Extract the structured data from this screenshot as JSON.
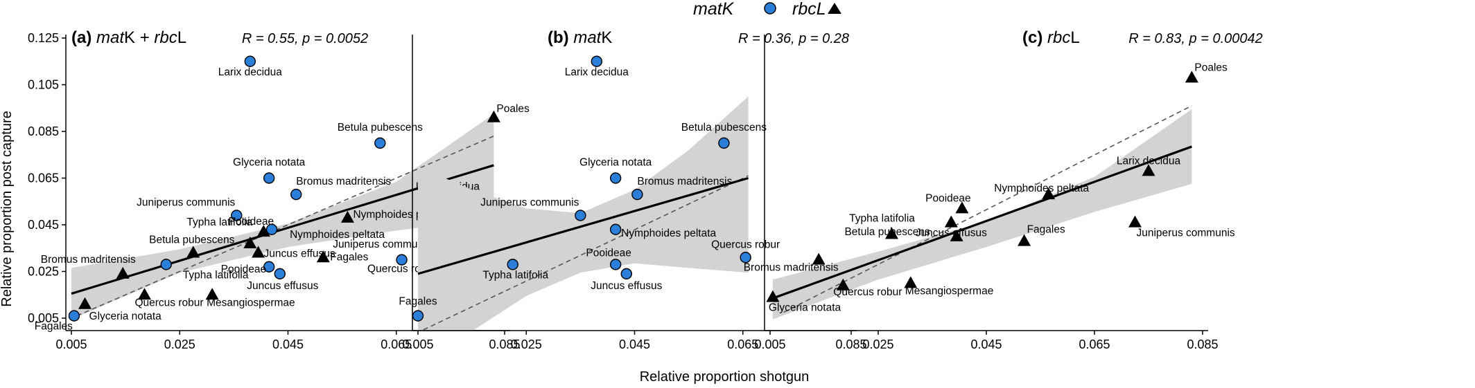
{
  "legend": {
    "placement": "top-center",
    "items": [
      {
        "label": "matK",
        "marker": "circle",
        "color": "#2b7fd9"
      },
      {
        "label": "rbcL",
        "marker": "triangle",
        "color": "#000000"
      }
    ]
  },
  "axes": {
    "ylabel": "Relative proportion post capture",
    "xlabel": "Relative proportion shotgun"
  },
  "colors": {
    "matK": "#2b7fd9",
    "rbcL": "#000000",
    "ribbon": "#d3d3d3",
    "fit": "#000000",
    "identity": "#555555"
  },
  "chart_data": [
    {
      "type": "scatter",
      "panel": "(a)",
      "title_prefix": "(a)",
      "title_parts": [
        {
          "text": "mat",
          "style": "italic"
        },
        {
          "text": "K + ",
          "style": "normal"
        },
        {
          "text": "rbc",
          "style": "italic"
        },
        {
          "text": "L",
          "style": "normal"
        }
      ],
      "stat_label": "R = 0.55,  p = 0.0052",
      "xlim": [
        0.005,
        0.085
      ],
      "ylim": [
        0.005,
        0.125
      ],
      "xticks": [
        "0.005",
        "0.025",
        "0.045",
        "0.065",
        "0.085"
      ],
      "yticks": [
        "0.005",
        "0.025",
        "0.045",
        "0.065",
        "0.085",
        "0.105",
        "0.125"
      ],
      "grid": false,
      "fit": {
        "x": [
          0.005,
          0.083
        ],
        "y": [
          0.0155,
          0.0705
        ]
      },
      "ribbon": {
        "x": [
          0.005,
          0.025,
          0.045,
          0.065,
          0.083
        ],
        "lower": [
          0.0045,
          0.0245,
          0.0355,
          0.0425,
          0.048
        ],
        "upper": [
          0.0265,
          0.0345,
          0.0455,
          0.0635,
          0.0925
        ]
      },
      "identity": {
        "x": [
          0.006,
          0.083
        ],
        "y": [
          0.006,
          0.083
        ]
      },
      "series": [
        {
          "name": "matK",
          "marker": "circle",
          "points": [
            {
              "label": "Larix decidua",
              "x": 0.038,
              "y": 0.115
            },
            {
              "label": "Betula pubescens",
              "x": 0.062,
              "y": 0.08
            },
            {
              "label": "Glyceria notata",
              "x": 0.0415,
              "y": 0.065
            },
            {
              "label": "Bromus madritensis",
              "x": 0.0465,
              "y": 0.058
            },
            {
              "label": "Juniperus communis",
              "x": 0.0355,
              "y": 0.049
            },
            {
              "label": "Nymphoides peltata",
              "x": 0.042,
              "y": 0.043
            },
            {
              "label": "Typha latifolia",
              "x": 0.0225,
              "y": 0.028
            },
            {
              "label": "Pooideae",
              "x": 0.0415,
              "y": 0.027
            },
            {
              "label": "Juncus effusus",
              "x": 0.0435,
              "y": 0.024
            },
            {
              "label": "Quercus robur",
              "x": 0.066,
              "y": 0.03
            },
            {
              "label": "Fagales",
              "x": 0.0055,
              "y": 0.006
            }
          ]
        },
        {
          "name": "rbcL",
          "marker": "triangle",
          "points": [
            {
              "label": "Poales",
              "x": 0.083,
              "y": 0.091
            },
            {
              "label": "Larix decidua",
              "x": 0.075,
              "y": 0.057
            },
            {
              "label": "Nymphoides peltata",
              "x": 0.056,
              "y": 0.048
            },
            {
              "label": "Juniperus communis",
              "x": 0.0725,
              "y": 0.037
            },
            {
              "label": "Fagales",
              "x": 0.0515,
              "y": 0.031
            },
            {
              "label": "Pooideae",
              "x": 0.0405,
              "y": 0.042
            },
            {
              "label": "Typha latifolia",
              "x": 0.038,
              "y": 0.037
            },
            {
              "label": "Juncus effusus",
              "x": 0.0395,
              "y": 0.033
            },
            {
              "label": "Betula pubescens",
              "x": 0.0275,
              "y": 0.033
            },
            {
              "label": "Bromus madritensis",
              "x": 0.0145,
              "y": 0.024
            },
            {
              "label": "Quercus robur",
              "x": 0.0185,
              "y": 0.015
            },
            {
              "label": "Mesangiospermae",
              "x": 0.031,
              "y": 0.015
            },
            {
              "label": "Glyceria notata",
              "x": 0.0075,
              "y": 0.011
            }
          ]
        }
      ]
    },
    {
      "type": "scatter",
      "panel": "(b)",
      "title_prefix": "(b)",
      "title_parts": [
        {
          "text": "mat",
          "style": "italic"
        },
        {
          "text": "K",
          "style": "normal"
        }
      ],
      "stat_label": "R = 0.36,  p = 0.28",
      "xlim": [
        0.005,
        0.085
      ],
      "ylim": [
        0.005,
        0.125
      ],
      "xticks": [
        "0.005",
        "0.025",
        "0.045",
        "0.065",
        "0.085"
      ],
      "yticks": [],
      "grid": false,
      "fit": {
        "x": [
          0.005,
          0.066
        ],
        "y": [
          0.024,
          0.065
        ]
      },
      "ribbon": {
        "x": [
          0.005,
          0.015,
          0.025,
          0.035,
          0.045,
          0.055,
          0.066
        ],
        "lower": [
          -0.0225,
          -0.0005,
          0.0145,
          0.0245,
          0.0285,
          0.0265,
          0.0245
        ],
        "upper": [
          0.07,
          0.06,
          0.052,
          0.05,
          0.06,
          0.077,
          0.1
        ]
      },
      "identity": {
        "x": [
          0.006,
          0.066
        ],
        "y": [
          0.0,
          0.066
        ]
      },
      "series": [
        {
          "name": "matK",
          "marker": "circle",
          "points": [
            {
              "label": "Larix decidua",
              "x": 0.038,
              "y": 0.115
            },
            {
              "label": "Betula pubescens",
              "x": 0.0615,
              "y": 0.08
            },
            {
              "label": "Glyceria notata",
              "x": 0.0415,
              "y": 0.065
            },
            {
              "label": "Bromus madritensis",
              "x": 0.0455,
              "y": 0.058
            },
            {
              "label": "Juniperus communis",
              "x": 0.035,
              "y": 0.049
            },
            {
              "label": "Nymphoides peltata",
              "x": 0.0415,
              "y": 0.043
            },
            {
              "label": "Typha latifolia",
              "x": 0.0225,
              "y": 0.028
            },
            {
              "label": "Pooideae",
              "x": 0.0415,
              "y": 0.028
            },
            {
              "label": "Juncus effusus",
              "x": 0.0435,
              "y": 0.024
            },
            {
              "label": "Quercus robur",
              "x": 0.0655,
              "y": 0.031
            },
            {
              "label": "Fagales",
              "x": 0.005,
              "y": 0.006
            }
          ]
        }
      ]
    },
    {
      "type": "scatter",
      "panel": "(c)",
      "title_prefix": "(c)",
      "title_parts": [
        {
          "text": "rbc",
          "style": "italic"
        },
        {
          "text": "L",
          "style": "normal"
        }
      ],
      "stat_label": "R = 0.83,  p = 0.00042",
      "xlim": [
        0.005,
        0.085
      ],
      "ylim": [
        0.005,
        0.125
      ],
      "xticks": [
        "0.005",
        "0.025",
        "0.045",
        "0.065",
        "0.085"
      ],
      "yticks": [],
      "grid": false,
      "fit": {
        "x": [
          0.0055,
          0.083
        ],
        "y": [
          0.0135,
          0.0785
        ]
      },
      "ribbon": {
        "x": [
          0.0055,
          0.025,
          0.045,
          0.065,
          0.083
        ],
        "lower": [
          0.0045,
          0.0215,
          0.0355,
          0.0505,
          0.0625
        ],
        "upper": [
          0.0215,
          0.0335,
          0.0465,
          0.0655,
          0.0945
        ]
      },
      "identity": {
        "x": [
          0.0075,
          0.083
        ],
        "y": [
          0.0075,
          0.096
        ]
      },
      "series": [
        {
          "name": "rbcL",
          "marker": "triangle",
          "points": [
            {
              "label": "Poales",
              "x": 0.083,
              "y": 0.108
            },
            {
              "label": "Larix decidua",
              "x": 0.075,
              "y": 0.068
            },
            {
              "label": "Nymphoides peltata",
              "x": 0.0565,
              "y": 0.058
            },
            {
              "label": "Pooideae",
              "x": 0.0405,
              "y": 0.052
            },
            {
              "label": "Typha latifolia",
              "x": 0.0275,
              "y": 0.041
            },
            {
              "label": "Juncus effusus",
              "x": 0.0385,
              "y": 0.046
            },
            {
              "label": "Juniperus communis",
              "x": 0.0725,
              "y": 0.046
            },
            {
              "label": "Fagales",
              "x": 0.052,
              "y": 0.038
            },
            {
              "label": "Betula pubescens",
              "x": 0.0395,
              "y": 0.04
            },
            {
              "label": "Bromus madritensis",
              "x": 0.014,
              "y": 0.03
            },
            {
              "label": "Quercus robur",
              "x": 0.0185,
              "y": 0.019
            },
            {
              "label": "Mesangiospermae",
              "x": 0.031,
              "y": 0.02
            },
            {
              "label": "Glyceria notata",
              "x": 0.0055,
              "y": 0.014
            }
          ]
        }
      ]
    }
  ]
}
